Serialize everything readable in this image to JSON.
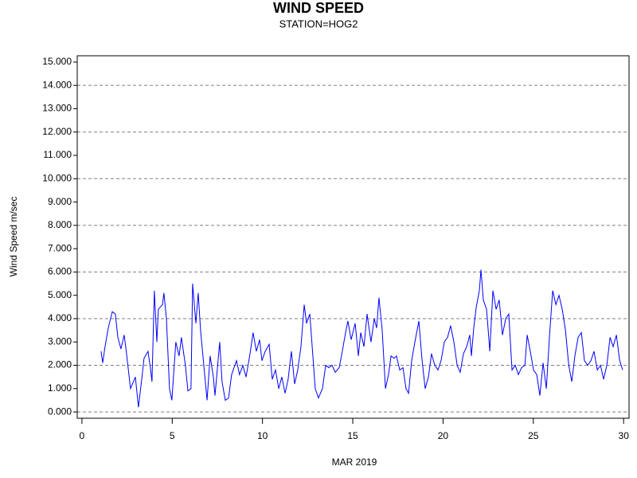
{
  "chart_data": {
    "type": "line",
    "title": "WIND SPEED",
    "subtitle": "STATION=HOG2",
    "ylabel": "Wind Speed m/sec",
    "xlabel": "MAR 2019",
    "xlim": [
      -0.26,
      30.3
    ],
    "ylim": [
      -0.27,
      15.27
    ],
    "xticks": [
      0,
      5,
      10,
      15,
      20,
      25,
      30
    ],
    "yticks": [
      {
        "value": 0,
        "label": "0.000"
      },
      {
        "value": 1,
        "label": "1.000"
      },
      {
        "value": 2,
        "label": "2.000"
      },
      {
        "value": 3,
        "label": "3.000"
      },
      {
        "value": 4,
        "label": "4.000"
      },
      {
        "value": 5,
        "label": "5.000"
      },
      {
        "value": 6,
        "label": "6.000"
      },
      {
        "value": 7,
        "label": "7.000"
      },
      {
        "value": 8,
        "label": "8.000"
      },
      {
        "value": 9,
        "label": "9.000"
      },
      {
        "value": 10,
        "label": "10.000"
      },
      {
        "value": 11,
        "label": "11.000"
      },
      {
        "value": 12,
        "label": "12.000"
      },
      {
        "value": 13,
        "label": "13.000"
      },
      {
        "value": 14,
        "label": "14.000"
      },
      {
        "value": 15,
        "label": "15.000"
      }
    ],
    "ygrid": [
      0,
      2,
      4,
      6,
      8,
      10,
      12,
      14
    ],
    "series": [
      {
        "color": "#0000ff",
        "x": [
          1.06,
          1.15,
          1.28,
          1.46,
          1.68,
          1.85,
          1.99,
          2.16,
          2.34,
          2.47,
          2.69,
          2.96,
          3.13,
          3.31,
          3.44,
          3.66,
          3.79,
          3.88,
          4.01,
          4.15,
          4.23,
          4.46,
          4.54,
          4.68,
          4.85,
          4.98,
          5.2,
          5.38,
          5.51,
          5.73,
          5.87,
          6.04,
          6.13,
          6.31,
          6.44,
          6.57,
          6.75,
          6.93,
          7.1,
          7.28,
          7.37,
          7.63,
          7.76,
          7.94,
          8.12,
          8.29,
          8.56,
          8.73,
          8.91,
          9.09,
          9.31,
          9.48,
          9.66,
          9.84,
          9.97,
          10.15,
          10.37,
          10.54,
          10.72,
          10.9,
          11.07,
          11.25,
          11.42,
          11.6,
          11.78,
          11.95,
          12.13,
          12.31,
          12.44,
          12.62,
          12.79,
          12.92,
          13.1,
          13.32,
          13.5,
          13.67,
          13.85,
          14.03,
          14.25,
          14.42,
          14.6,
          14.73,
          14.91,
          15.13,
          15.31,
          15.44,
          15.62,
          15.79,
          16.01,
          16.19,
          16.32,
          16.45,
          16.63,
          16.81,
          16.98,
          17.12,
          17.29,
          17.42,
          17.6,
          17.78,
          17.95,
          18.09,
          18.26,
          18.44,
          18.66,
          18.84,
          19.01,
          19.19,
          19.36,
          19.54,
          19.72,
          19.89,
          20.07,
          20.25,
          20.42,
          20.6,
          20.78,
          20.95,
          21.13,
          21.31,
          21.48,
          21.57,
          21.7,
          21.84,
          22.01,
          22.1,
          22.23,
          22.41,
          22.59,
          22.76,
          22.94,
          23.11,
          23.29,
          23.47,
          23.64,
          23.82,
          24.0,
          24.17,
          24.35,
          24.53,
          24.66,
          24.83,
          25.01,
          25.19,
          25.36,
          25.54,
          25.72,
          25.89,
          26.07,
          26.25,
          26.42,
          26.6,
          26.78,
          26.96,
          27.13,
          27.3,
          27.48,
          27.66,
          27.83,
          28.01,
          28.19,
          28.36,
          28.54,
          28.72,
          28.89,
          29.07,
          29.25,
          29.42,
          29.6,
          29.78,
          29.95
        ],
        "values": [
          2.6,
          2.1,
          2.8,
          3.6,
          4.3,
          4.2,
          3.2,
          2.7,
          3.3,
          2.5,
          1.0,
          1.5,
          0.2,
          1.4,
          2.3,
          2.6,
          1.9,
          1.3,
          5.2,
          3.0,
          4.4,
          4.6,
          5.1,
          4.0,
          1.0,
          0.5,
          3.0,
          2.4,
          3.2,
          2.0,
          0.9,
          1.0,
          5.5,
          3.8,
          5.1,
          3.5,
          2.0,
          0.5,
          2.4,
          1.5,
          0.7,
          3.0,
          1.3,
          0.5,
          0.6,
          1.6,
          2.2,
          1.6,
          2.0,
          1.5,
          2.5,
          3.4,
          2.6,
          3.1,
          2.2,
          2.6,
          2.9,
          1.4,
          1.8,
          1.0,
          1.5,
          0.8,
          1.4,
          2.6,
          1.2,
          1.8,
          2.8,
          4.6,
          3.8,
          4.2,
          2.4,
          1.0,
          0.6,
          1.0,
          2.0,
          1.9,
          2.0,
          1.7,
          1.9,
          2.6,
          3.4,
          3.9,
          3.1,
          3.8,
          2.4,
          3.4,
          2.8,
          4.2,
          3.0,
          4.0,
          3.6,
          4.9,
          3.5,
          1.0,
          1.6,
          2.4,
          2.3,
          2.4,
          1.8,
          1.9,
          1.0,
          0.8,
          2.2,
          3.0,
          3.9,
          2.2,
          1.0,
          1.5,
          2.5,
          2.0,
          1.8,
          2.2,
          3.0,
          3.2,
          3.7,
          3.0,
          2.0,
          1.7,
          2.5,
          2.8,
          3.3,
          2.4,
          3.6,
          4.5,
          5.2,
          6.1,
          4.8,
          4.4,
          2.6,
          5.2,
          4.4,
          4.8,
          3.3,
          4.0,
          4.2,
          1.8,
          2.0,
          1.6,
          1.9,
          2.0,
          3.3,
          2.6,
          1.8,
          1.6,
          0.7,
          2.1,
          1.0,
          3.2,
          5.2,
          4.6,
          5.0,
          4.4,
          3.5,
          2.0,
          1.3,
          2.4,
          3.2,
          3.4,
          2.2,
          2.0,
          2.2,
          2.6,
          1.8,
          2.0,
          1.4,
          2.0,
          3.2,
          2.8,
          3.3,
          2.2,
          1.8
        ]
      }
    ]
  }
}
